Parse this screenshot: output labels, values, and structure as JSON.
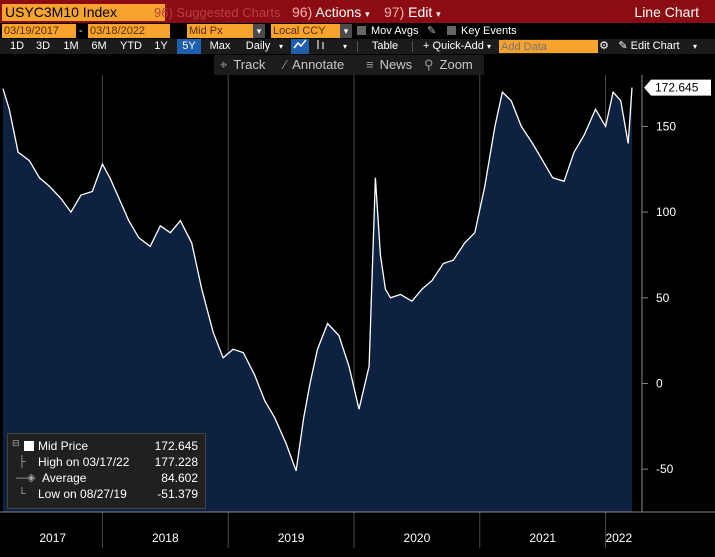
{
  "toolbar": {
    "ticker": "USYC3M10 Index",
    "suggested": "Suggested Charts",
    "suggested_num": "96)",
    "actions_num": "96)",
    "actions": "Actions",
    "edit_num": "97)",
    "edit": "Edit",
    "chart_type": "Line Chart"
  },
  "range_bar": {
    "start_date": "03/19/2017",
    "end_date": "03/18/2022",
    "separator": "-",
    "field": "Mid Px",
    "currency": "Local CCY",
    "mov_avgs": "Mov Avgs",
    "key_events": "Key Events"
  },
  "period_bar": {
    "periods": [
      "1D",
      "3D",
      "1M",
      "6M",
      "YTD",
      "1Y",
      "5Y",
      "Max"
    ],
    "selected": "5Y",
    "frequency": "Daily",
    "table": "Table",
    "quick_add": "Quick-Add",
    "add_data_placeholder": "Add Data",
    "edit_chart": "Edit Chart"
  },
  "tools": {
    "track": "Track",
    "annotate": "Annotate",
    "news": "News",
    "zoom": "Zoom"
  },
  "legend": {
    "mid_price_label": "Mid Price",
    "mid_price_value": "172.645",
    "high_label": "High on 03/17/22",
    "high_value": "177.228",
    "average_label": "Average",
    "average_value": "84.602",
    "low_label": "Low on 08/27/19",
    "low_value": "-51.379"
  },
  "colors": {
    "background": "#000000",
    "area_fill": "#0d2240",
    "line": "#ffffff",
    "accent_orange": "#f7a32d",
    "header_red": "#8b0c12",
    "grid": "#4a4a4a"
  },
  "chart_data": {
    "type": "area",
    "title": "",
    "xlabel": "",
    "ylabel": "",
    "ylim": [
      -75,
      180
    ],
    "yticks": [
      -50,
      0,
      50,
      100,
      150
    ],
    "x_tick_labels": [
      "2017",
      "2018",
      "2019",
      "2020",
      "2021",
      "2022"
    ],
    "last_value_label": "172.645",
    "grid": "vertical year separators",
    "series": [
      {
        "x": [
          2017.21,
          2017.26,
          2017.33,
          2017.42,
          2017.5,
          2017.58,
          2017.67,
          2017.75,
          2017.83,
          2017.92,
          2018.0,
          2018.06,
          2018.12,
          2018.21,
          2018.29,
          2018.38,
          2018.46,
          2018.54,
          2018.62,
          2018.71,
          2018.79,
          2018.88,
          2018.96,
          2019.04,
          2019.12,
          2019.21,
          2019.29,
          2019.37,
          2019.46,
          2019.54,
          2019.6,
          2019.65,
          2019.71,
          2019.79,
          2019.88,
          2019.96,
          2020.04,
          2020.12,
          2020.17,
          2020.21,
          2020.25,
          2020.29,
          2020.37,
          2020.46,
          2020.54,
          2020.62,
          2020.71,
          2020.79,
          2020.88,
          2020.96,
          2021.04,
          2021.12,
          2021.18,
          2021.25,
          2021.33,
          2021.42,
          2021.5,
          2021.58,
          2021.67,
          2021.75,
          2021.83,
          2021.92,
          2022.0,
          2022.06,
          2022.12,
          2022.18,
          2022.21
        ],
        "values": [
          172,
          160,
          135,
          130,
          120,
          115,
          108,
          100,
          110,
          112,
          128,
          120,
          110,
          95,
          85,
          80,
          92,
          88,
          95,
          82,
          55,
          30,
          15,
          20,
          18,
          5,
          -10,
          -20,
          -35,
          -51,
          -20,
          0,
          20,
          35,
          28,
          10,
          -15,
          10,
          120,
          75,
          55,
          50,
          52,
          48,
          55,
          60,
          70,
          72,
          82,
          88,
          115,
          150,
          170,
          165,
          150,
          140,
          130,
          120,
          118,
          135,
          145,
          160,
          150,
          170,
          165,
          140,
          172.645
        ]
      }
    ]
  }
}
